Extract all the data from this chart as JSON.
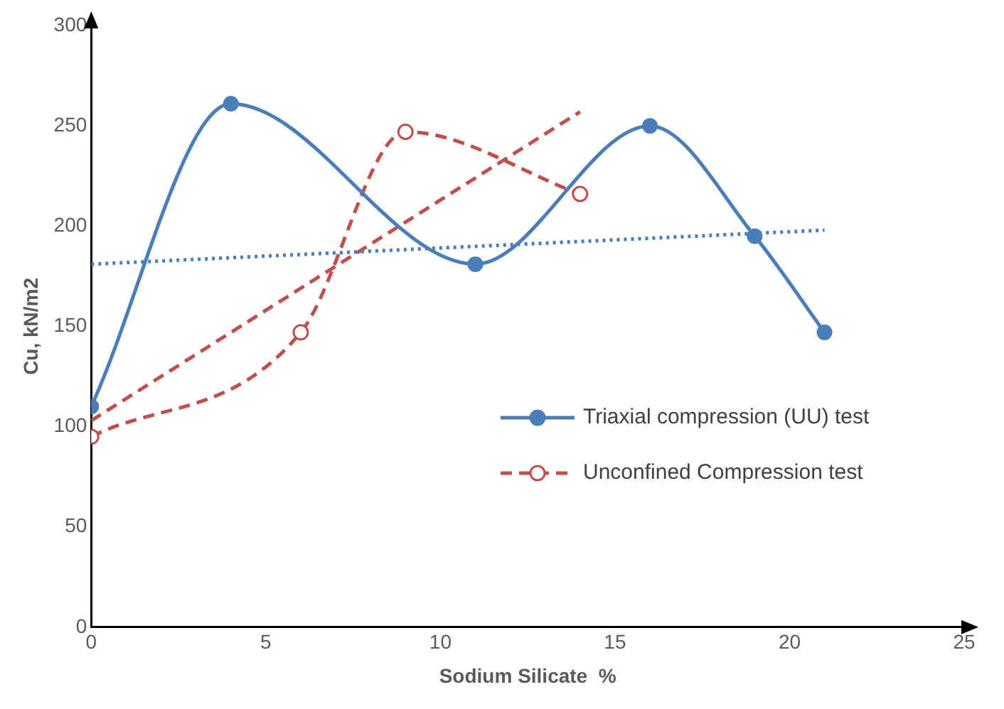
{
  "chart_data": {
    "type": "line",
    "xlabel": "Sodium Silicate  %",
    "ylabel": "Cu, kN/m2",
    "xlim": [
      0,
      25
    ],
    "xticks": [
      0,
      5,
      10,
      15,
      20,
      25
    ],
    "ylim": [
      0,
      300
    ],
    "yticks": [
      0,
      50,
      100,
      150,
      200,
      250,
      300
    ],
    "grid": false,
    "legend": "right",
    "series": [
      {
        "name": "Triaxial compression (UU) test",
        "color": "#4a7ebb",
        "x": [
          0,
          4,
          11,
          16,
          19,
          21
        ],
        "values": [
          110,
          261,
          181,
          250,
          195,
          147
        ],
        "marker": "circle",
        "line_style": "solid"
      },
      {
        "name": "Unconfined Compression test",
        "color": "#c0504d",
        "x": [
          0,
          6,
          9,
          14
        ],
        "values": [
          95,
          147,
          247,
          216
        ],
        "marker": "circle",
        "line_style": "dashed"
      },
      {
        "type": "line",
        "color": "#4a7ebb",
        "x": [
          0,
          21
        ],
        "values": [
          181,
          198
        ],
        "marker": "none",
        "line_style": "dotted"
      },
      {
        "type": "line",
        "color": "#c0504d",
        "x": [
          0,
          14
        ],
        "values": [
          103,
          257
        ],
        "marker": "none",
        "line_style": "dashed"
      }
    ]
  }
}
